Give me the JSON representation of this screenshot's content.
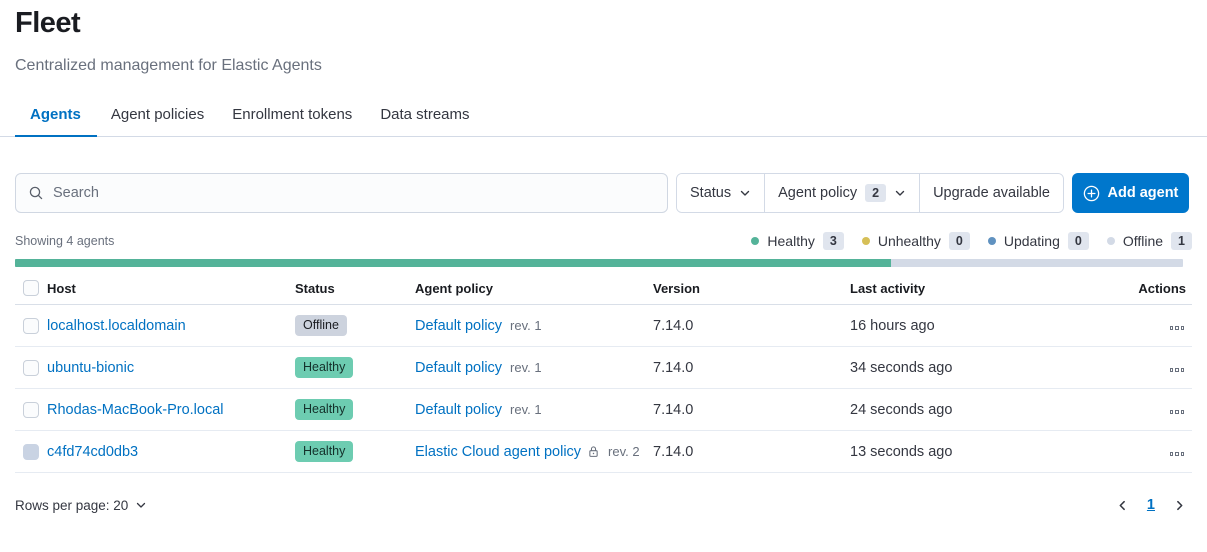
{
  "header": {
    "title": "Fleet",
    "subtitle": "Centralized management for Elastic Agents"
  },
  "tabs": [
    {
      "label": "Agents"
    },
    {
      "label": "Agent policies"
    },
    {
      "label": "Enrollment tokens"
    },
    {
      "label": "Data streams"
    }
  ],
  "toolbar": {
    "search_placeholder": "Search",
    "status_filter_label": "Status",
    "agent_policy_filter_label": "Agent policy",
    "agent_policy_filter_count": "2",
    "upgrade_filter_label": "Upgrade available",
    "add_agent_label": "Add agent"
  },
  "summary": {
    "showing_text": "Showing 4 agents",
    "legend": [
      {
        "label": "Healthy",
        "count": "3",
        "color": "#54B399"
      },
      {
        "label": "Unhealthy",
        "count": "0",
        "color": "#D6BF57"
      },
      {
        "label": "Updating",
        "count": "0",
        "color": "#6092C0"
      },
      {
        "label": "Offline",
        "count": "1",
        "color": "#D3DAE6"
      }
    ],
    "progress": {
      "healthy_pct": 75,
      "healthy_color": "#54B399",
      "track_color": "#D3DAE6"
    }
  },
  "table": {
    "columns": [
      "Host",
      "Status",
      "Agent policy",
      "Version",
      "Last activity",
      "Actions"
    ],
    "rows": [
      {
        "host": "localhost.localdomain",
        "status": "Offline",
        "policy": "Default policy",
        "revision": "rev. 1",
        "version": "7.14.0",
        "last_activity": "16 hours ago"
      },
      {
        "host": "ubuntu-bionic",
        "status": "Healthy",
        "policy": "Default policy",
        "revision": "rev. 1",
        "version": "7.14.0",
        "last_activity": "34 seconds ago"
      },
      {
        "host": "Rhodas-MacBook-Pro.local",
        "status": "Healthy",
        "policy": "Default policy",
        "revision": "rev. 1",
        "version": "7.14.0",
        "last_activity": "24 seconds ago"
      },
      {
        "host": "c4fd74cd0db3",
        "status": "Healthy",
        "policy": "Elastic Cloud agent policy",
        "revision": "rev. 2",
        "version": "7.14.0",
        "last_activity": "13 seconds ago"
      }
    ]
  },
  "footer": {
    "rows_per_page_label": "Rows per page: 20",
    "current_page": "1"
  }
}
